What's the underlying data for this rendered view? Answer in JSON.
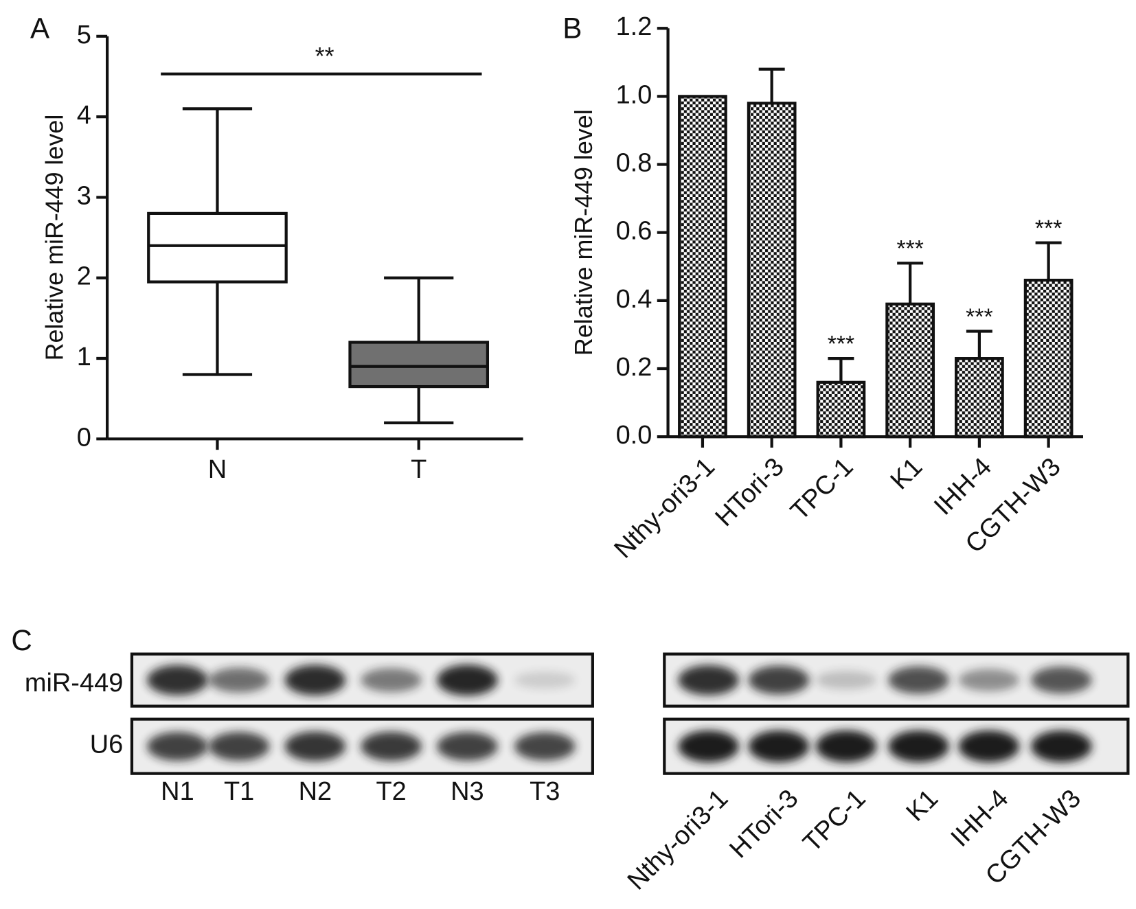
{
  "chart_data": [
    {
      "type": "box",
      "panel_label": "A",
      "y_label": "Relative miR-449 level",
      "categories": [
        "N",
        "T"
      ],
      "boxes": [
        {
          "min": 0.8,
          "q1": 1.95,
          "median": 2.4,
          "q3": 2.8,
          "max": 4.1,
          "color": "#ffffff"
        },
        {
          "min": 0.2,
          "q1": 0.65,
          "median": 0.9,
          "q3": 1.2,
          "max": 2.0,
          "color": "#707070"
        }
      ],
      "significance": "**",
      "ylim": [
        0,
        5
      ],
      "yticks": [
        0,
        1,
        2,
        3,
        4,
        5
      ]
    },
    {
      "type": "bar",
      "panel_label": "B",
      "y_label": "Relative miR-449 level",
      "categories": [
        "Nthy-ori3-1",
        "HTori-3",
        "TPC-1",
        "K1",
        "IHH-4",
        "CGTH-W3"
      ],
      "values": [
        1.0,
        0.98,
        0.16,
        0.39,
        0.23,
        0.46
      ],
      "errors": [
        null,
        0.1,
        0.07,
        0.12,
        0.08,
        0.11
      ],
      "annotations": [
        null,
        null,
        "***",
        "***",
        "***",
        "***"
      ],
      "color": "checkered",
      "ylim": [
        0,
        1.2
      ],
      "yticks": [
        {
          "value": 0,
          "label": "0.0"
        },
        0.2,
        0.4,
        0.6,
        0.8,
        {
          "value": 1,
          "label": "1.0"
        },
        1.2
      ]
    }
  ],
  "blots": {
    "panel_label": "C",
    "row_labels": [
      "miR-449",
      "U6"
    ],
    "left_lanes": [
      "N1",
      "T1",
      "N2",
      "T2",
      "N3",
      "T3"
    ],
    "right_lanes": [
      "Nthy-ori3-1",
      "HTori-3",
      "TPC-1",
      "K1",
      "IHH-4",
      "CGTH-W3"
    ]
  }
}
